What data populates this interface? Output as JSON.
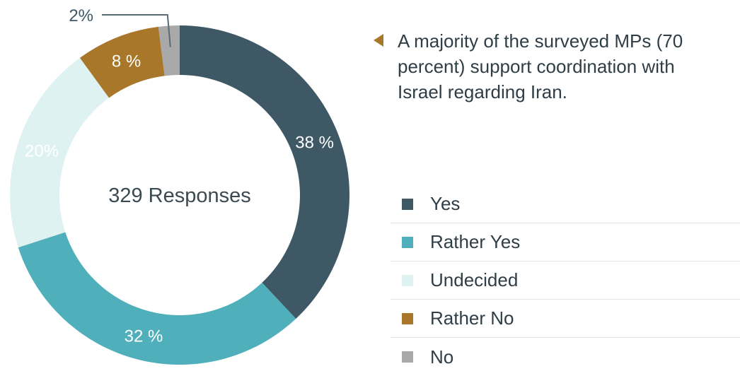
{
  "chart_data": {
    "type": "pie",
    "center_text": "329 Responses",
    "categories": [
      "Yes",
      "Rather Yes",
      "Undecided",
      "Rather No",
      "No"
    ],
    "values": [
      38,
      32,
      20,
      8,
      2
    ],
    "labels": [
      "38 %",
      "32 %",
      "20%",
      "8 %",
      "2%"
    ],
    "colors": [
      "#3e5866",
      "#4fafbb",
      "#dff2f2",
      "#a8772a",
      "#a9a9a9"
    ],
    "label_colors": [
      "#ffffff",
      "#ffffff",
      "#ffffff",
      "#ffffff",
      "#3e5866"
    ],
    "legend_position": "right"
  },
  "annotation": {
    "text": "A majority of the surveyed MPs (70 percent) support coordination with Israel regarding Iran.",
    "arrow_color": "#a8772a"
  },
  "legend": {
    "items": [
      {
        "label": "Yes",
        "color": "#3e5866"
      },
      {
        "label": "Rather Yes",
        "color": "#4fafbb"
      },
      {
        "label": "Undecided",
        "color": "#dff2f2"
      },
      {
        "label": "Rather No",
        "color": "#a8772a"
      },
      {
        "label": "No",
        "color": "#a9a9a9"
      }
    ]
  }
}
